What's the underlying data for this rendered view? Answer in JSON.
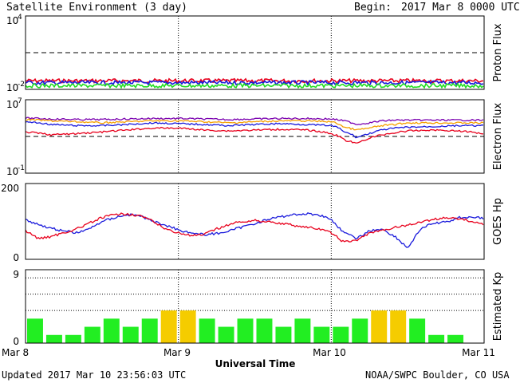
{
  "header": {
    "title": "Satellite Environment (3 day)",
    "begin_label": "Begin:",
    "begin_value": "2017 Mar 8 0000 UTC"
  },
  "footer": {
    "updated": "Updated 2017 Mar 10 23:56:03 UTC",
    "credit": "NOAA/SWPC Boulder, CO USA"
  },
  "x_axis": {
    "label": "Universal Time",
    "ticks": [
      "Mar 8",
      "Mar 9",
      "Mar 10",
      "Mar 11"
    ]
  },
  "colors": {
    "red": "#e8001c",
    "blue": "#1a1adc",
    "green": "#22dd22",
    "orange": "#f5a000",
    "purple": "#7a00b0",
    "kp_green": "#22ee22",
    "kp_yellow": "#f5cc00"
  },
  "chart_data": [
    {
      "type": "line",
      "name": "proton",
      "ylabel": "Proton Flux",
      "yscale": "log",
      "ylim": [
        0.01,
        10000
      ],
      "ytick_labels": [
        {
          "base": "10",
          "exp": "4",
          "value": 10000
        },
        {
          "base": "10",
          "exp": "-2",
          "value": 0.01
        }
      ],
      "dashed_threshold": 10,
      "x": [
        0,
        72
      ],
      "series": [
        {
          "color": "red",
          "values": [
            0.05,
            0.05
          ]
        },
        {
          "color": "blue",
          "values": [
            0.035,
            0.035
          ]
        },
        {
          "color": "green",
          "values": [
            0.02,
            0.02
          ]
        }
      ]
    },
    {
      "type": "line",
      "name": "electron",
      "ylabel": "Electron Flux",
      "yscale": "log",
      "ylim": [
        0.1,
        10000000
      ],
      "ytick_labels": [
        {
          "base": "10",
          "exp": "7",
          "value": 10000000
        },
        {
          "base": "10",
          "exp": "-1",
          "value": 0.1
        }
      ],
      "dashed_threshold": 1000,
      "x": [
        0,
        4,
        8,
        12,
        16,
        20,
        24,
        28,
        32,
        36,
        40,
        44,
        48,
        50,
        52,
        54,
        56,
        58,
        60,
        64,
        68,
        72
      ],
      "series": [
        {
          "color": "purple",
          "values": [
            100000,
            80000,
            70000,
            70000,
            80000,
            90000,
            90000,
            80000,
            70000,
            80000,
            90000,
            90000,
            80000,
            50000,
            20000,
            30000,
            50000,
            60000,
            60000,
            60000,
            60000,
            60000
          ]
        },
        {
          "color": "orange",
          "values": [
            70000,
            50000,
            40000,
            30000,
            40000,
            50000,
            50000,
            40000,
            30000,
            40000,
            50000,
            50000,
            40000,
            10000,
            5000,
            8000,
            15000,
            20000,
            30000,
            30000,
            30000,
            30000
          ]
        },
        {
          "color": "blue",
          "values": [
            40000,
            20000,
            15000,
            15000,
            20000,
            30000,
            25000,
            20000,
            15000,
            20000,
            25000,
            20000,
            15000,
            3000,
            700,
            2000,
            5000,
            8000,
            10000,
            12000,
            15000,
            15000
          ]
        },
        {
          "color": "red",
          "values": [
            3000,
            1500,
            2000,
            3000,
            5000,
            8000,
            8000,
            5000,
            4000,
            5000,
            6000,
            5000,
            2000,
            400,
            150,
            600,
            1500,
            2500,
            4000,
            5000,
            4000,
            2000
          ]
        }
      ]
    },
    {
      "type": "line",
      "name": "hp",
      "ylabel": "GOES Hp",
      "ylim": [
        0,
        200
      ],
      "ytick_labels": [
        "200",
        "0"
      ],
      "x": [
        0,
        2,
        4,
        6,
        8,
        10,
        12,
        14,
        16,
        18,
        20,
        22,
        24,
        26,
        28,
        30,
        32,
        34,
        36,
        38,
        40,
        42,
        44,
        46,
        48,
        50,
        52,
        54,
        56,
        58,
        60,
        62,
        64,
        66,
        68,
        70,
        72
      ],
      "series": [
        {
          "color": "blue",
          "values": [
            105,
            92,
            82,
            75,
            70,
            80,
            100,
            110,
            118,
            115,
            100,
            90,
            78,
            70,
            65,
            68,
            75,
            85,
            95,
            105,
            112,
            118,
            120,
            118,
            105,
            70,
            55,
            75,
            80,
            60,
            30,
            80,
            95,
            98,
            110,
            112,
            108
          ]
        },
        {
          "color": "red",
          "values": [
            75,
            55,
            60,
            70,
            80,
            95,
            110,
            118,
            120,
            115,
            100,
            80,
            70,
            62,
            65,
            80,
            92,
            100,
            102,
            100,
            95,
            90,
            85,
            80,
            70,
            45,
            50,
            70,
            75,
            85,
            90,
            98,
            105,
            110,
            108,
            100,
            92
          ]
        }
      ]
    },
    {
      "type": "bar",
      "name": "kp",
      "ylabel": "Estimated Kp",
      "ylim": [
        0,
        9
      ],
      "ytick_labels": [
        "9",
        "0"
      ],
      "dotted_levels": [
        4,
        6,
        8
      ],
      "bin_hours": 3,
      "values": [
        3,
        1,
        1,
        2,
        3,
        2,
        3,
        4,
        4,
        3,
        2,
        3,
        3,
        2,
        3,
        2,
        2,
        3,
        4,
        4,
        3,
        1,
        1
      ],
      "colors": [
        "kp_green",
        "kp_green",
        "kp_green",
        "kp_green",
        "kp_green",
        "kp_green",
        "kp_green",
        "kp_yellow",
        "kp_yellow",
        "kp_green",
        "kp_green",
        "kp_green",
        "kp_green",
        "kp_green",
        "kp_green",
        "kp_green",
        "kp_green",
        "kp_green",
        "kp_yellow",
        "kp_yellow",
        "kp_green",
        "kp_green",
        "kp_green"
      ]
    }
  ]
}
